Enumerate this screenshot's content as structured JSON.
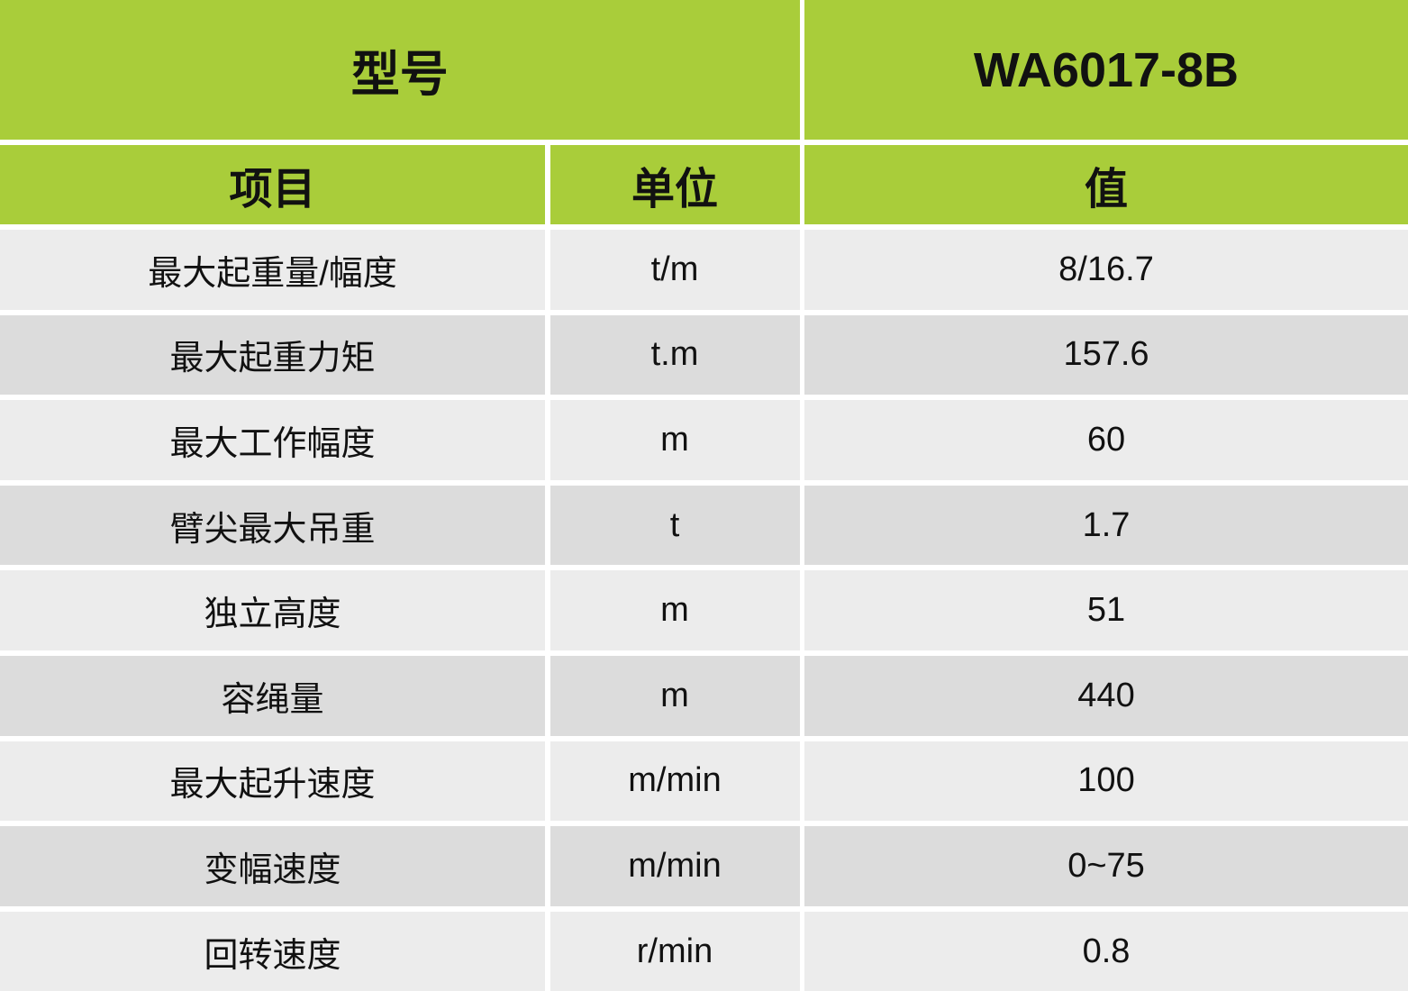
{
  "header": {
    "model_label": "型号",
    "model_value": "WA6017-8B",
    "col_item": "项目",
    "col_unit": "单位",
    "col_value": "值"
  },
  "colors": {
    "header_green": "#a9cd3a",
    "row_light": "#ececec",
    "row_dark": "#dcdcdc"
  },
  "rows": [
    {
      "item": "最大起重量/幅度",
      "unit": "t/m",
      "value": "8/16.7"
    },
    {
      "item": "最大起重力矩",
      "unit": "t.m",
      "value": "157.6"
    },
    {
      "item": "最大工作幅度",
      "unit": "m",
      "value": "60"
    },
    {
      "item": "臂尖最大吊重",
      "unit": "t",
      "value": "1.7"
    },
    {
      "item": "独立高度",
      "unit": "m",
      "value": "51"
    },
    {
      "item": "容绳量",
      "unit": "m",
      "value": "440"
    },
    {
      "item": "最大起升速度",
      "unit": "m/min",
      "value": "100"
    },
    {
      "item": "变幅速度",
      "unit": "m/min",
      "value": "0~75"
    },
    {
      "item": "回转速度",
      "unit": "r/min",
      "value": "0.8"
    }
  ]
}
